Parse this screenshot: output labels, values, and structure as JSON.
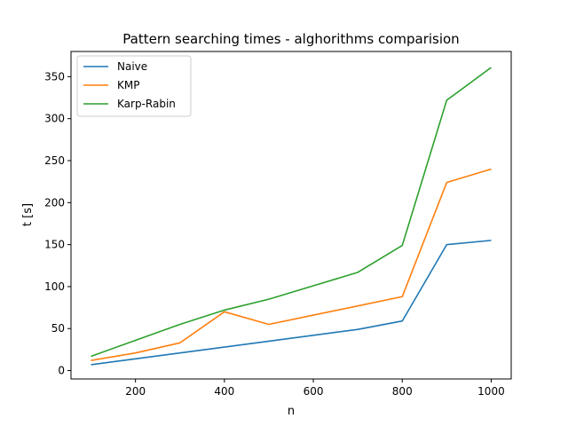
{
  "chart_data": {
    "type": "line",
    "title": "Pattern searching times - alghorithms comparision",
    "xlabel": "n",
    "ylabel": "t [s]",
    "x": [
      100,
      200,
      300,
      400,
      500,
      600,
      700,
      800,
      900,
      1000
    ],
    "xlim": [
      55,
      1045
    ],
    "ylim": [
      -10,
      380
    ],
    "xticks": [
      200,
      400,
      600,
      800,
      1000
    ],
    "yticks": [
      0,
      50,
      100,
      150,
      200,
      250,
      300,
      350
    ],
    "grid": false,
    "legend_position": "top-left",
    "series": [
      {
        "name": "Naive",
        "color": "#1f77b4",
        "values": [
          7,
          14,
          21,
          28,
          35,
          42,
          49,
          59,
          150,
          155
        ]
      },
      {
        "name": "KMP",
        "color": "#ff7f0e",
        "values": [
          12,
          21,
          33,
          70,
          55,
          66,
          77,
          88,
          224,
          240
        ]
      },
      {
        "name": "Karp-Rabin",
        "color": "#2ca02c",
        "values": [
          17,
          36,
          55,
          72,
          85,
          101,
          117,
          149,
          322,
          361
        ]
      }
    ]
  }
}
